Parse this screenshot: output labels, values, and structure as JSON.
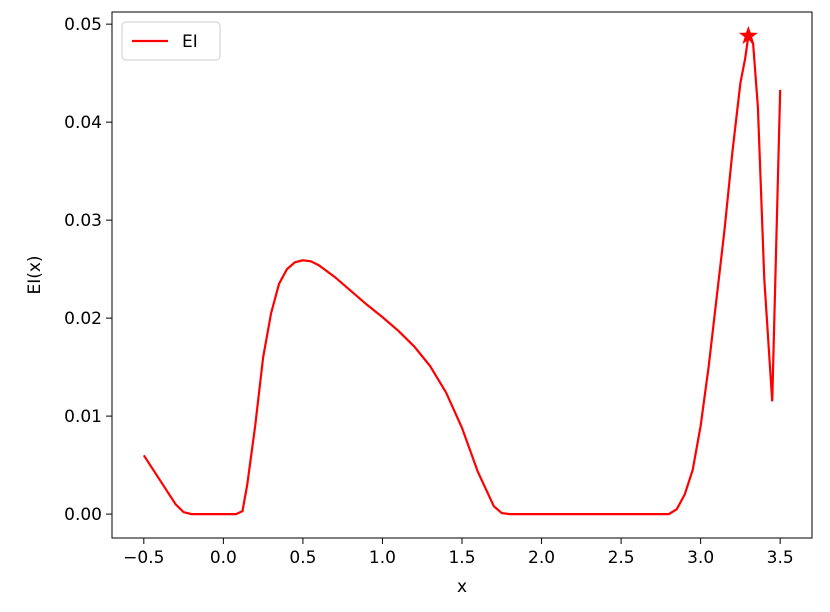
{
  "chart_data": {
    "type": "line",
    "xlabel": "x",
    "ylabel": "EI(x)",
    "xlim": [
      -0.7,
      3.7
    ],
    "ylim": [
      -0.00244,
      0.05124
    ],
    "xticks": [
      {
        "value": -0.5,
        "label": "−0.5"
      },
      {
        "value": 0,
        "label": "0.0"
      },
      0.5,
      {
        "value": 1,
        "label": "1.0"
      },
      1.5,
      {
        "value": 2,
        "label": "2.0"
      },
      2.5,
      {
        "value": 3,
        "label": "3.0"
      },
      3.5
    ],
    "yticks": [
      {
        "value": 0,
        "label": "0.00"
      },
      {
        "value": 0.01,
        "label": "0.01"
      },
      {
        "value": 0.02,
        "label": "0.02"
      },
      {
        "value": 0.03,
        "label": "0.03"
      },
      {
        "value": 0.04,
        "label": "0.04"
      },
      {
        "value": 0.05,
        "label": "0.05"
      }
    ],
    "legend": "upper left",
    "x": [
      -0.5,
      -0.4,
      -0.3,
      -0.25,
      -0.2,
      0.0,
      0.08,
      0.12,
      0.15,
      0.2,
      0.25,
      0.3,
      0.35,
      0.4,
      0.45,
      0.5,
      0.55,
      0.6,
      0.7,
      0.8,
      0.9,
      1.0,
      1.1,
      1.2,
      1.3,
      1.4,
      1.5,
      1.6,
      1.7,
      1.75,
      1.8,
      2.0,
      2.5,
      2.8,
      2.85,
      2.9,
      2.95,
      3.0,
      3.05,
      3.1,
      3.15,
      3.2,
      3.25,
      3.28,
      3.3,
      3.33,
      3.36,
      3.4,
      3.45,
      3.5
    ],
    "series": [
      {
        "name": "EI",
        "color": "#ff0000",
        "values": [
          0.006,
          0.0035,
          0.001,
          0.0002,
          0,
          0,
          0,
          0.0003,
          0.003,
          0.009,
          0.016,
          0.0205,
          0.0235,
          0.025,
          0.0257,
          0.0259,
          0.0258,
          0.0254,
          0.0242,
          0.0228,
          0.0214,
          0.0201,
          0.0187,
          0.0171,
          0.0151,
          0.0124,
          0.0088,
          0.0043,
          0.0008,
          0.0001,
          0,
          0,
          0,
          0,
          0.0005,
          0.002,
          0.0045,
          0.009,
          0.015,
          0.022,
          0.029,
          0.037,
          0.044,
          0.0465,
          0.0488,
          0.048,
          0.0415,
          0.024,
          0.0115,
          0.0433
        ]
      }
    ],
    "marker": {
      "x": 3.3,
      "y": 0.0488,
      "color": "#ff0000"
    }
  }
}
